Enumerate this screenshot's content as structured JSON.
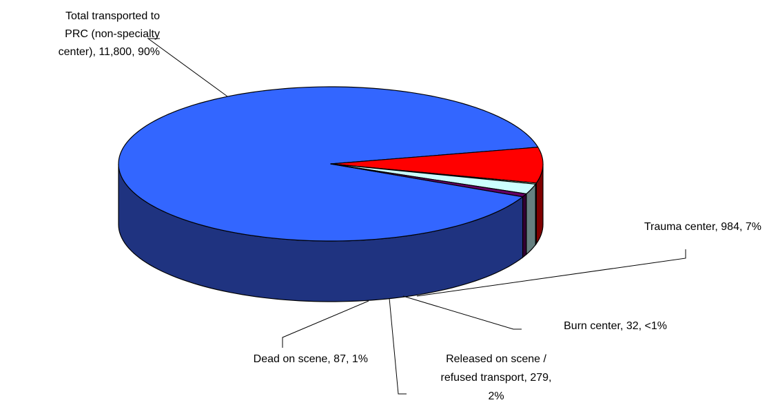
{
  "chart_data": {
    "type": "pie",
    "style": "3d",
    "title": "",
    "slices": [
      {
        "name": "Total transported to PRC (non-specialty center)",
        "value": 11800,
        "pct": "90%",
        "color": "#3366ff",
        "side_color": "#1f3380",
        "label_lines": [
          "Total transported to",
          "PRC (non-specialty",
          "center), 11,800, 90%"
        ]
      },
      {
        "name": "Trauma center",
        "value": 984,
        "pct": "7%",
        "color": "#ff0000",
        "side_color": "#800000",
        "label_lines": [
          "Trauma center, 984, 7%"
        ]
      },
      {
        "name": "Burn center",
        "value": 32,
        "pct": "<1%",
        "color": "#ccffcc",
        "side_color": "#668066",
        "label_lines": [
          "Burn center, 32, <1%"
        ]
      },
      {
        "name": "Released on scene / refused transport",
        "value": 279,
        "pct": "2%",
        "color": "#ccffff",
        "side_color": "#668080",
        "label_lines": [
          "Released on scene /",
          "refused transport, 279,",
          "2%"
        ]
      },
      {
        "name": "Dead on scene",
        "value": 87,
        "pct": "1%",
        "color": "#660066",
        "side_color": "#330033",
        "label_lines": [
          "Dead on scene, 87, 1%"
        ]
      }
    ]
  }
}
